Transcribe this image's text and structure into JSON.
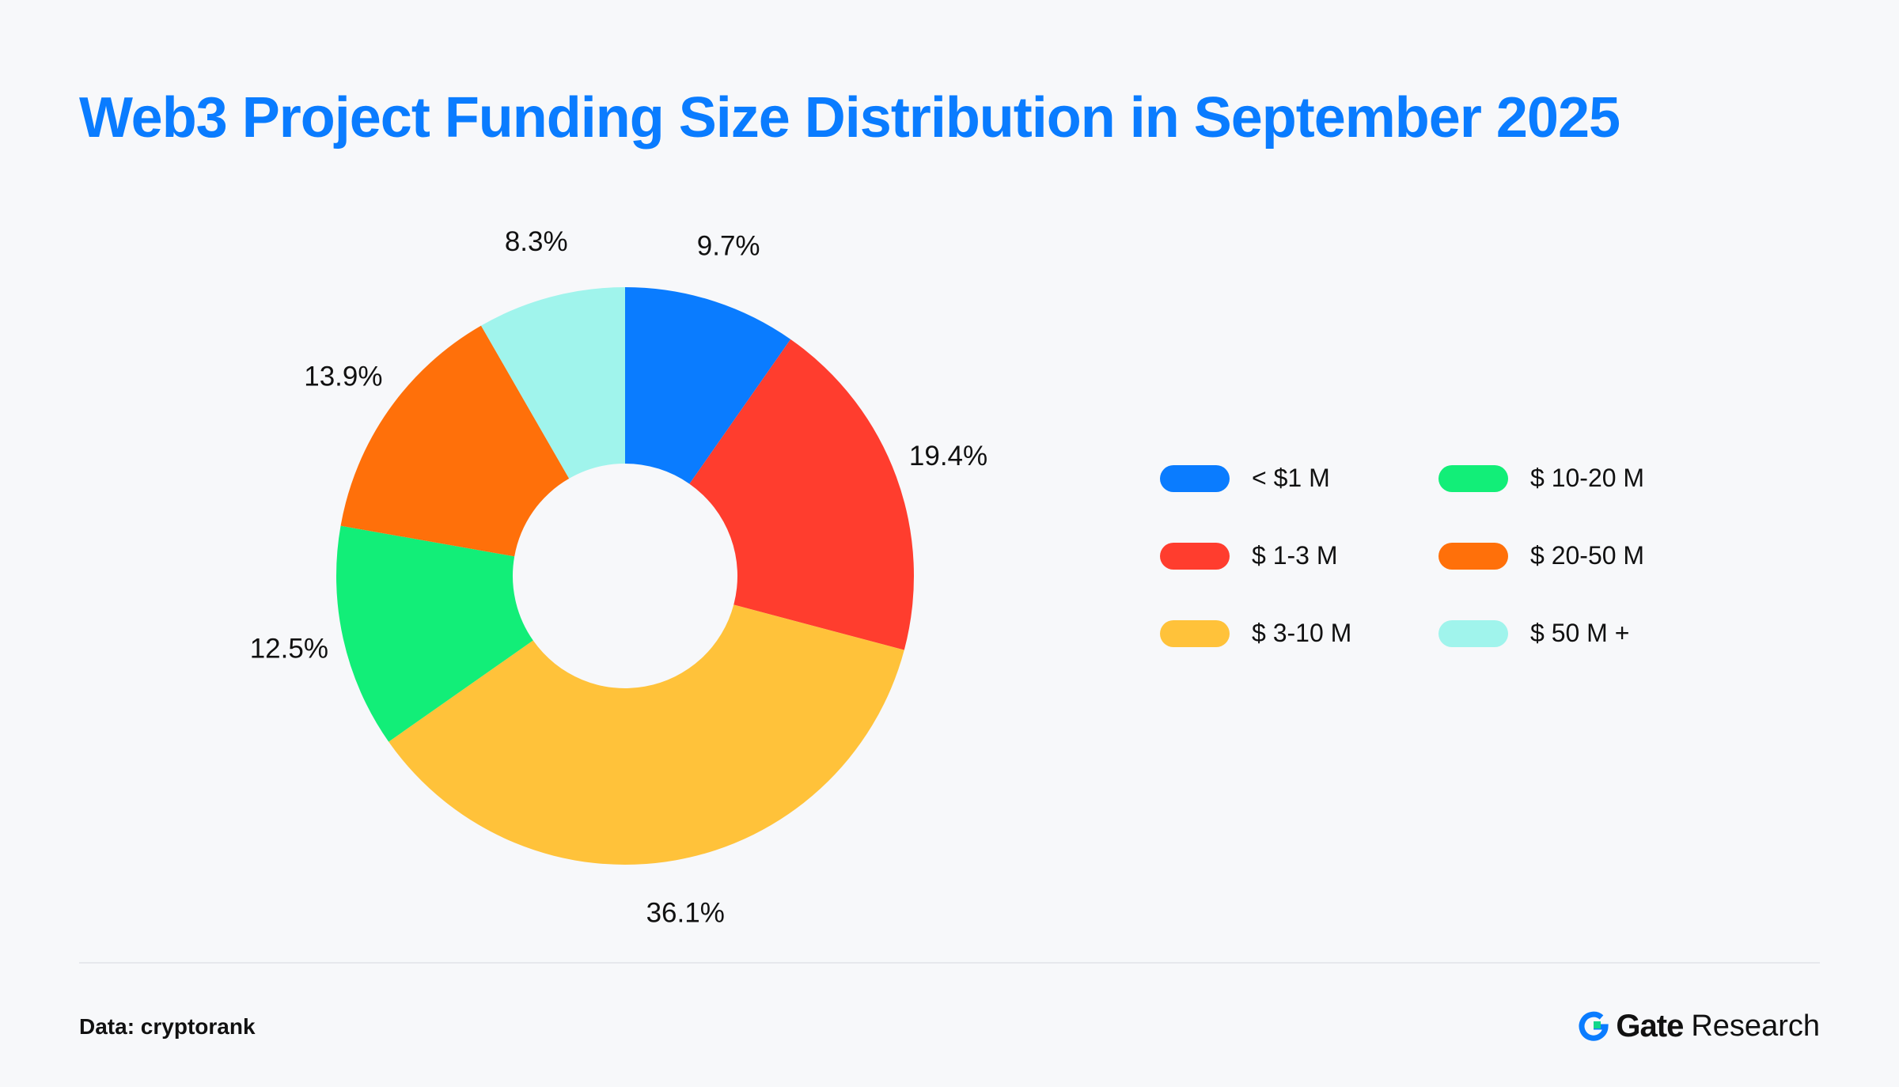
{
  "title": "Web3 Project Funding Size Distribution in September 2025",
  "source": "Data: cryptorank",
  "brand": {
    "name": "Gate",
    "sub": "Research"
  },
  "chart_data": {
    "type": "pie",
    "subtype": "donut",
    "title": "Web3 Project Funding Size Distribution in September 2025",
    "categories": [
      "< $1 M",
      "$ 1-3 M",
      "$ 3-10 M",
      "$ 10-20 M",
      "$ 20-50 M",
      "$ 50 M +"
    ],
    "values": [
      9.7,
      19.4,
      36.1,
      12.5,
      13.9,
      8.3
    ],
    "labels": [
      "9.7%",
      "19.4%",
      "36.1%",
      "12.5%",
      "13.9%",
      "8.3%"
    ],
    "colors": [
      "#0a7cff",
      "#ff3d2e",
      "#ffc23a",
      "#12ee78",
      "#ff700a",
      "#a0f4ec"
    ],
    "legend_position": "right"
  }
}
